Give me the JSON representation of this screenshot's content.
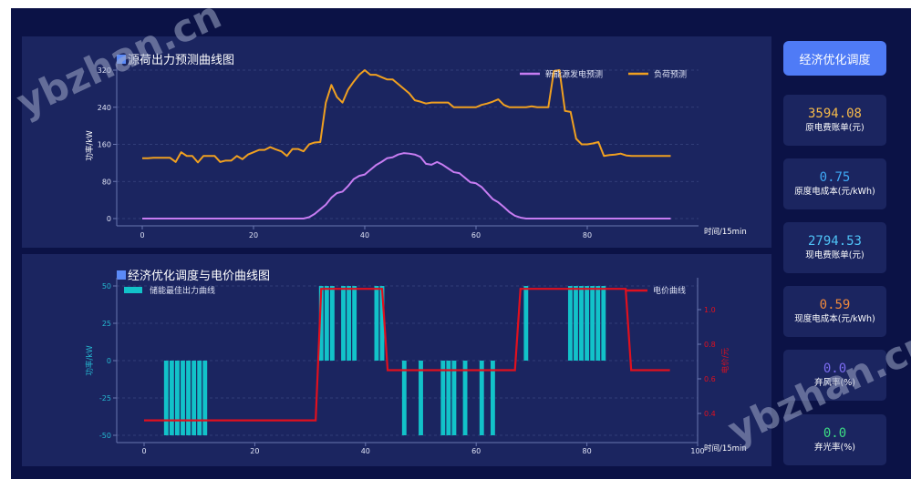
{
  "colors": {
    "background": "#0b1246",
    "panel": "#1b2560",
    "accent_button": "#4f7bf6",
    "renewable_line": "#c77cf2",
    "load_line": "#f0a020",
    "storage_bar": "#12c2c9",
    "price_line": "#e0101e"
  },
  "sidebar": {
    "optimize_button": "经济优化调度",
    "cards": [
      {
        "value": "3594.08",
        "label": "原电费账单(元)",
        "color": "#f5b94a"
      },
      {
        "value": "0.75",
        "label": "原度电成本(元/kWh)",
        "color": "#3fa9f5"
      },
      {
        "value": "2794.53",
        "label": "现电费账单(元)",
        "color": "#4fc3f7"
      },
      {
        "value": "0.59",
        "label": "现度电成本(元/kWh)",
        "color": "#f08a3c"
      },
      {
        "value": "0.0",
        "label": "弃风率(%)",
        "color": "#7b6cf0"
      },
      {
        "value": "0.0",
        "label": "弃光率(%)",
        "color": "#3ddc84"
      }
    ]
  },
  "top_panel": {
    "title": "源荷出力预测曲线图"
  },
  "bottom_panel": {
    "title": "经济优化调度与电价曲线图"
  },
  "watermarks": [
    "ybzhan.cn",
    "ybzhan.cn"
  ],
  "chart_data": [
    {
      "type": "line",
      "title": "源荷出力预测曲线图",
      "xlabel": "时间/15min",
      "ylabel": "功率/kW",
      "xticks": [
        0,
        20,
        40,
        60,
        80
      ],
      "yticks": [
        0,
        80,
        160,
        240,
        320
      ],
      "ylim": [
        0,
        320
      ],
      "grid": true,
      "legend_position": "top-right",
      "x": [
        0,
        1,
        2,
        3,
        4,
        5,
        6,
        7,
        8,
        9,
        10,
        11,
        12,
        13,
        14,
        15,
        16,
        17,
        18,
        19,
        20,
        21,
        22,
        23,
        24,
        25,
        26,
        27,
        28,
        29,
        30,
        31,
        32,
        33,
        34,
        35,
        36,
        37,
        38,
        39,
        40,
        41,
        42,
        43,
        44,
        45,
        46,
        47,
        48,
        49,
        50,
        51,
        52,
        53,
        54,
        55,
        56,
        57,
        58,
        59,
        60,
        61,
        62,
        63,
        64,
        65,
        66,
        67,
        68,
        69,
        70,
        71,
        72,
        73,
        74,
        75,
        76,
        77,
        78,
        79,
        80,
        81,
        82,
        83,
        84,
        85,
        86,
        87,
        88,
        89,
        90,
        91,
        92,
        93,
        94,
        95
      ],
      "series": [
        {
          "name": "新能源发电预测",
          "color": "#c77cf2",
          "values": [
            0,
            0,
            0,
            0,
            0,
            0,
            0,
            0,
            0,
            0,
            0,
            0,
            0,
            0,
            0,
            0,
            0,
            0,
            0,
            0,
            0,
            0,
            0,
            0,
            0,
            0,
            0,
            0,
            0,
            0,
            3,
            10,
            20,
            30,
            45,
            55,
            58,
            70,
            85,
            92,
            95,
            105,
            115,
            122,
            130,
            132,
            138,
            141,
            140,
            138,
            133,
            118,
            116,
            122,
            116,
            108,
            100,
            98,
            88,
            78,
            76,
            68,
            55,
            42,
            35,
            25,
            14,
            6,
            2,
            0,
            0,
            0,
            0,
            0,
            0,
            0,
            0,
            0,
            0,
            0,
            0,
            0,
            0,
            0,
            0,
            0,
            0,
            0,
            0,
            0,
            0,
            0,
            0,
            0,
            0,
            0
          ]
        },
        {
          "name": "负荷预测",
          "color": "#f0a020",
          "values": [
            130,
            130,
            131,
            131,
            131,
            131,
            122,
            143,
            135,
            135,
            121,
            135,
            135,
            135,
            122,
            125,
            125,
            135,
            128,
            138,
            143,
            148,
            148,
            154,
            149,
            145,
            135,
            150,
            150,
            145,
            160,
            164,
            165,
            250,
            288,
            262,
            250,
            278,
            295,
            310,
            320,
            310,
            310,
            305,
            300,
            300,
            290,
            280,
            270,
            255,
            252,
            248,
            250,
            250,
            250,
            250,
            240,
            240,
            240,
            240,
            240,
            245,
            248,
            252,
            257,
            245,
            240,
            240,
            240,
            240,
            242,
            240,
            240,
            240,
            318,
            320,
            232,
            230,
            172,
            160,
            160,
            162,
            165,
            135,
            137,
            138,
            140,
            136,
            135,
            135,
            135,
            135,
            135,
            135,
            135,
            135
          ]
        }
      ]
    },
    {
      "type": "bar",
      "title": "经济优化调度与电价曲线图",
      "xlabel": "时间/15min",
      "ylabel": "功率/kW",
      "y2label": "电价/元",
      "xticks": [
        0,
        20,
        40,
        60,
        80,
        100
      ],
      "yticks": [
        -50,
        -25,
        0,
        25,
        50
      ],
      "y2ticks": [
        0.4,
        0.6,
        0.8,
        1.0
      ],
      "ylim": [
        -50,
        50
      ],
      "y2lim": [
        0.33,
        1.15
      ],
      "grid": true,
      "series": [
        {
          "name": "储能最佳出力曲线",
          "color": "#12c2c9",
          "type": "bar",
          "bars": [
            {
              "x": 4,
              "v": -50
            },
            {
              "x": 5,
              "v": -50
            },
            {
              "x": 6,
              "v": -50
            },
            {
              "x": 7,
              "v": -50
            },
            {
              "x": 8,
              "v": -50
            },
            {
              "x": 9,
              "v": -50
            },
            {
              "x": 10,
              "v": -50
            },
            {
              "x": 11,
              "v": -50
            },
            {
              "x": 32,
              "v": 50
            },
            {
              "x": 33,
              "v": 50
            },
            {
              "x": 34,
              "v": 50
            },
            {
              "x": 36,
              "v": 50
            },
            {
              "x": 37,
              "v": 50
            },
            {
              "x": 38,
              "v": 50
            },
            {
              "x": 42,
              "v": 50
            },
            {
              "x": 43,
              "v": 50
            },
            {
              "x": 47,
              "v": -50
            },
            {
              "x": 50,
              "v": -50
            },
            {
              "x": 54,
              "v": -50
            },
            {
              "x": 55,
              "v": -50
            },
            {
              "x": 56,
              "v": -50
            },
            {
              "x": 58,
              "v": -50
            },
            {
              "x": 61,
              "v": -50
            },
            {
              "x": 63,
              "v": -50
            },
            {
              "x": 69,
              "v": 50
            },
            {
              "x": 77,
              "v": 50
            },
            {
              "x": 78,
              "v": 50
            },
            {
              "x": 79,
              "v": 50
            },
            {
              "x": 80,
              "v": 50
            },
            {
              "x": 81,
              "v": 50
            },
            {
              "x": 82,
              "v": 50
            },
            {
              "x": 83,
              "v": 50
            }
          ]
        },
        {
          "name": "电价曲线",
          "color": "#e0101e",
          "type": "line",
          "axis": "right",
          "points": [
            [
              0,
              0.36
            ],
            [
              31,
              0.36
            ],
            [
              32,
              1.12
            ],
            [
              43,
              1.12
            ],
            [
              44,
              0.65
            ],
            [
              67,
              0.65
            ],
            [
              68,
              1.12
            ],
            [
              87,
              1.12
            ],
            [
              88,
              0.65
            ],
            [
              95,
              0.65
            ]
          ]
        }
      ]
    }
  ]
}
